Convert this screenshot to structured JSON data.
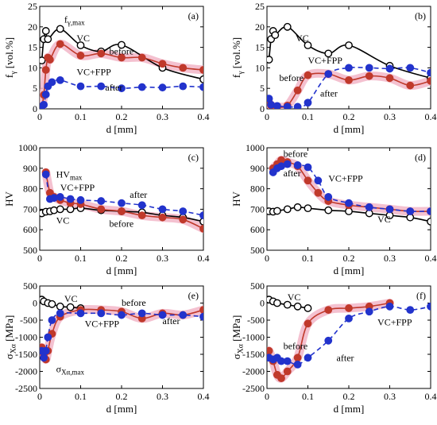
{
  "colors": {
    "vc": "#000000",
    "before": "#c0392b",
    "after": "#2233cc",
    "band": "#f2b6c8"
  },
  "chart_data": [
    {
      "type": "scatter",
      "panel_label": "(a)",
      "ylabel": "f_γ [vol.%]",
      "xlabel": "d [mm]",
      "xlim": [
        0,
        0.4
      ],
      "ylim": [
        0,
        25
      ],
      "xticks": [
        "0",
        "0.1",
        "0.2",
        "0.3",
        "0.4"
      ],
      "yticks": [
        "0",
        "5",
        "10",
        "15",
        "20",
        "25"
      ],
      "annotations": [
        {
          "text": "f_γ,max"
        },
        {
          "text": "VC"
        },
        {
          "text": "before"
        },
        {
          "text": "VC+FPP"
        },
        {
          "text": "after"
        }
      ],
      "series": [
        {
          "name": "VC",
          "x": [
            0.005,
            0.01,
            0.015,
            0.02,
            0.05,
            0.1,
            0.15,
            0.2,
            0.3,
            0.4
          ],
          "y": [
            11.8,
            17,
            19,
            17,
            19.5,
            15.5,
            14,
            15.6,
            10,
            7.2
          ]
        },
        {
          "name": "before",
          "x": [
            0.005,
            0.01,
            0.015,
            0.02,
            0.025,
            0.05,
            0.1,
            0.15,
            0.2,
            0.25,
            0.3,
            0.35,
            0.4
          ],
          "y": [
            0.5,
            3.4,
            9.5,
            12.5,
            12,
            15.8,
            13,
            13.5,
            12.5,
            12.5,
            11,
            10,
            9.5
          ]
        },
        {
          "name": "after",
          "x": [
            0.005,
            0.01,
            0.015,
            0.02,
            0.03,
            0.05,
            0.1,
            0.15,
            0.2,
            0.25,
            0.3,
            0.35,
            0.4
          ],
          "y": [
            0.6,
            1,
            3.5,
            5.5,
            6.5,
            7,
            5.5,
            5.5,
            5,
            5.3,
            5.2,
            5.5,
            5.3
          ]
        }
      ]
    },
    {
      "type": "scatter",
      "panel_label": "(b)",
      "ylabel": "f_γ [vol.%]",
      "xlabel": "d [mm]",
      "xlim": [
        0,
        0.4
      ],
      "ylim": [
        0,
        25
      ],
      "xticks": [
        "0",
        "0.1",
        "0.2",
        "0.3",
        "0.4"
      ],
      "yticks": [
        "0",
        "5",
        "10",
        "15",
        "20",
        "25"
      ],
      "annotations": [
        {
          "text": "VC"
        },
        {
          "text": "VC+FPP"
        },
        {
          "text": "before"
        },
        {
          "text": "after"
        }
      ],
      "series": [
        {
          "name": "VC",
          "x": [
            0.005,
            0.01,
            0.015,
            0.02,
            0.05,
            0.1,
            0.15,
            0.2,
            0.3,
            0.4
          ],
          "y": [
            12,
            17,
            19,
            18,
            20,
            15.5,
            13.5,
            15.5,
            10.5,
            7.5
          ]
        },
        {
          "name": "before",
          "x": [
            0.005,
            0.01,
            0.025,
            0.05,
            0.075,
            0.1,
            0.15,
            0.2,
            0.25,
            0.3,
            0.35,
            0.4
          ],
          "y": [
            1.5,
            0.8,
            0.5,
            0.8,
            4.5,
            8.2,
            8.5,
            7,
            8,
            7.5,
            5.7,
            6.8
          ]
        },
        {
          "name": "after",
          "x": [
            0.005,
            0.01,
            0.025,
            0.05,
            0.075,
            0.1,
            0.15,
            0.2,
            0.25,
            0.3,
            0.35,
            0.4
          ],
          "y": [
            2.5,
            1,
            0.7,
            0.5,
            0.5,
            1.5,
            8.5,
            10,
            10,
            9.8,
            10,
            8.8
          ]
        }
      ]
    },
    {
      "type": "scatter",
      "panel_label": "(c)",
      "ylabel": "HV",
      "xlabel": "d [mm]",
      "xlim": [
        0,
        0.4
      ],
      "ylim": [
        500,
        1000
      ],
      "xticks": [
        "0",
        "0.1",
        "0.2",
        "0.3",
        "0.4"
      ],
      "yticks": [
        "500",
        "600",
        "700",
        "800",
        "900",
        "1000"
      ],
      "annotations": [
        {
          "text": "HV_max"
        },
        {
          "text": "VC+FPP"
        },
        {
          "text": "after"
        },
        {
          "text": "VC"
        },
        {
          "text": "before"
        }
      ],
      "series": [
        {
          "name": "VC",
          "x": [
            0.005,
            0.015,
            0.025,
            0.035,
            0.05,
            0.075,
            0.1,
            0.15,
            0.2,
            0.25,
            0.3,
            0.35,
            0.4
          ],
          "y": [
            680,
            688,
            690,
            695,
            700,
            700,
            705,
            695,
            690,
            685,
            670,
            660,
            640
          ]
        },
        {
          "name": "before",
          "x": [
            0.015,
            0.025,
            0.035,
            0.05,
            0.075,
            0.1,
            0.15,
            0.2,
            0.25,
            0.3,
            0.35,
            0.4
          ],
          "y": [
            880,
            780,
            760,
            745,
            730,
            725,
            700,
            690,
            670,
            660,
            650,
            605
          ]
        },
        {
          "name": "after",
          "x": [
            0.015,
            0.025,
            0.035,
            0.05,
            0.075,
            0.1,
            0.15,
            0.2,
            0.25,
            0.3,
            0.35,
            0.4
          ],
          "y": [
            870,
            750,
            755,
            760,
            750,
            745,
            740,
            730,
            720,
            700,
            690,
            670
          ]
        }
      ]
    },
    {
      "type": "scatter",
      "panel_label": "(d)",
      "ylabel": "HV",
      "xlabel": "d [mm]",
      "xlim": [
        0,
        0.4
      ],
      "ylim": [
        500,
        1000
      ],
      "xticks": [
        "0",
        "0.1",
        "0.2",
        "0.3",
        "0.4"
      ],
      "yticks": [
        "500",
        "600",
        "700",
        "800",
        "900",
        "1000"
      ],
      "annotations": [
        {
          "text": "before"
        },
        {
          "text": "after"
        },
        {
          "text": "VC+FPP"
        },
        {
          "text": "VC"
        }
      ],
      "series": [
        {
          "name": "VC",
          "x": [
            0.005,
            0.015,
            0.025,
            0.05,
            0.075,
            0.1,
            0.15,
            0.2,
            0.25,
            0.3,
            0.35,
            0.4
          ],
          "y": [
            690,
            688,
            692,
            700,
            710,
            705,
            695,
            690,
            680,
            670,
            660,
            640
          ]
        },
        {
          "name": "before",
          "x": [
            0.015,
            0.025,
            0.035,
            0.05,
            0.075,
            0.1,
            0.125,
            0.15,
            0.2,
            0.25,
            0.3,
            0.35,
            0.4
          ],
          "y": [
            900,
            920,
            940,
            930,
            910,
            840,
            780,
            740,
            720,
            710,
            700,
            690,
            690
          ]
        },
        {
          "name": "after",
          "x": [
            0.015,
            0.025,
            0.035,
            0.05,
            0.075,
            0.1,
            0.125,
            0.15,
            0.2,
            0.25,
            0.3,
            0.35,
            0.4
          ],
          "y": [
            880,
            900,
            910,
            920,
            915,
            905,
            840,
            760,
            730,
            710,
            700,
            690,
            690
          ]
        }
      ]
    },
    {
      "type": "scatter",
      "panel_label": "(e)",
      "ylabel": "σ_Xα [MPa]",
      "xlabel": "d [mm]",
      "xlim": [
        0,
        0.4
      ],
      "ylim": [
        -2500,
        500
      ],
      "xticks": [
        "0",
        "0.1",
        "0.2",
        "0.3",
        "0.4"
      ],
      "yticks": [
        "-2500",
        "-2000",
        "-1500",
        "-1000",
        "-500",
        "0",
        "500"
      ],
      "annotations": [
        {
          "text": "VC"
        },
        {
          "text": "before"
        },
        {
          "text": "VC+FPP"
        },
        {
          "text": "after"
        },
        {
          "text": "σ_Xα,max"
        }
      ],
      "series": [
        {
          "name": "VC",
          "x": [
            0.005,
            0.01,
            0.02,
            0.03,
            0.05,
            0.075,
            0.1
          ],
          "y": [
            100,
            50,
            0,
            -30,
            -100,
            -120,
            -150
          ]
        },
        {
          "name": "before",
          "x": [
            0.005,
            0.01,
            0.015,
            0.02,
            0.03,
            0.05,
            0.1,
            0.15,
            0.2,
            0.25,
            0.3,
            0.35,
            0.4
          ],
          "y": [
            -1300,
            -1500,
            -1650,
            -1400,
            -900,
            -400,
            -200,
            -200,
            -250,
            -450,
            -300,
            -350,
            -200
          ]
        },
        {
          "name": "after",
          "x": [
            0.005,
            0.01,
            0.015,
            0.02,
            0.03,
            0.05,
            0.1,
            0.15,
            0.2,
            0.25,
            0.3,
            0.35,
            0.4
          ],
          "y": [
            -1400,
            -1600,
            -1400,
            -1000,
            -500,
            -300,
            -300,
            -300,
            -350,
            -300,
            -350,
            -350,
            -400
          ]
        }
      ]
    },
    {
      "type": "scatter",
      "panel_label": "(f)",
      "ylabel": "σ_Xα [MPa]",
      "xlabel": "d [mm]",
      "xlim": [
        0,
        0.4
      ],
      "ylim": [
        -2500,
        500
      ],
      "xticks": [
        "0",
        "0.1",
        "0.2",
        "0.3",
        "0.4"
      ],
      "yticks": [
        "-2500",
        "-2000",
        "-1500",
        "-1000",
        "-500",
        "0",
        "500"
      ],
      "annotations": [
        {
          "text": "VC"
        },
        {
          "text": "VC+FPP"
        },
        {
          "text": "before"
        },
        {
          "text": "after"
        }
      ],
      "series": [
        {
          "name": "VC",
          "x": [
            0.005,
            0.015,
            0.025,
            0.05,
            0.075,
            0.1
          ],
          "y": [
            100,
            50,
            0,
            -50,
            -100,
            -150
          ]
        },
        {
          "name": "before",
          "x": [
            0.005,
            0.015,
            0.025,
            0.035,
            0.05,
            0.075,
            0.1,
            0.15,
            0.2,
            0.25,
            0.3
          ],
          "y": [
            -1400,
            -1700,
            -2100,
            -2200,
            -2000,
            -1600,
            -600,
            -200,
            -150,
            -100,
            0
          ]
        },
        {
          "name": "after",
          "x": [
            0.005,
            0.015,
            0.025,
            0.035,
            0.05,
            0.075,
            0.1,
            0.15,
            0.2,
            0.25,
            0.3,
            0.35,
            0.4
          ],
          "y": [
            -1600,
            -1650,
            -1600,
            -1700,
            -1700,
            -1800,
            -1600,
            -1100,
            -450,
            -250,
            -100,
            -200,
            -100
          ]
        }
      ]
    }
  ]
}
